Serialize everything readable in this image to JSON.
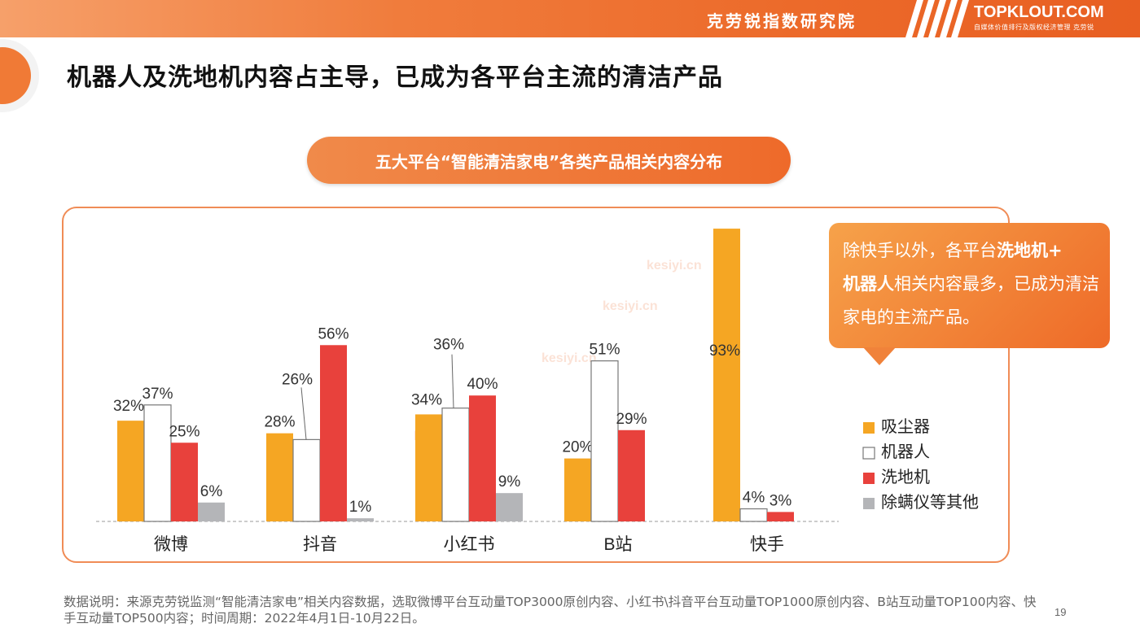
{
  "header": {
    "org_name": "克劳锐指数研究院",
    "brand": "TOPKLOUT.COM",
    "brand_sub": "自媒体价值排行及版权经济管理  克劳锐"
  },
  "title": "机器人及洗地机内容占主导，已成为各平台主流的清洁产品",
  "chart_title": "五大平台“智能清洁家电”各类产品相关内容分布",
  "callout": {
    "part1": "除快手以外，各平台",
    "bold1": "洗地机+",
    "bold2": "机器人",
    "part2": "相关内容最多，已成为清洁家电的主流产品。"
  },
  "watermark": "kesiyi.cn",
  "note": "数据说明：来源克劳锐监测“智能清洁家电”相关内容数据，选取微博平台互动量TOP3000原创内容、小红书\\抖音平台互动量TOP1000原创内容、B站互动量TOP100内容、快手互动量TOP500内容；时间周期：2022年4月1日-10月22日。",
  "page_number": "19",
  "colors": {
    "vacuum": "#F5A623",
    "robot": "#FFFFFF",
    "robot_border": "#777777",
    "floor_washer": "#E8413C",
    "other": "#B4B5B8",
    "accent": "#EE6A2A"
  },
  "chart_data": {
    "type": "bar",
    "categories": [
      "微博",
      "抖音",
      "小红书",
      "B站",
      "快手"
    ],
    "series": [
      {
        "name": "吸尘器",
        "values": [
          32,
          28,
          34,
          20,
          93
        ]
      },
      {
        "name": "机器人",
        "values": [
          37,
          26,
          36,
          51,
          4
        ]
      },
      {
        "name": "洗地机",
        "values": [
          25,
          56,
          40,
          29,
          3
        ]
      },
      {
        "name": "除螨仪等其他",
        "values": [
          6,
          1,
          9,
          null,
          null
        ]
      }
    ],
    "value_suffix": "%",
    "ylim": [
      0,
      100
    ],
    "grid": false,
    "legend": "right"
  }
}
